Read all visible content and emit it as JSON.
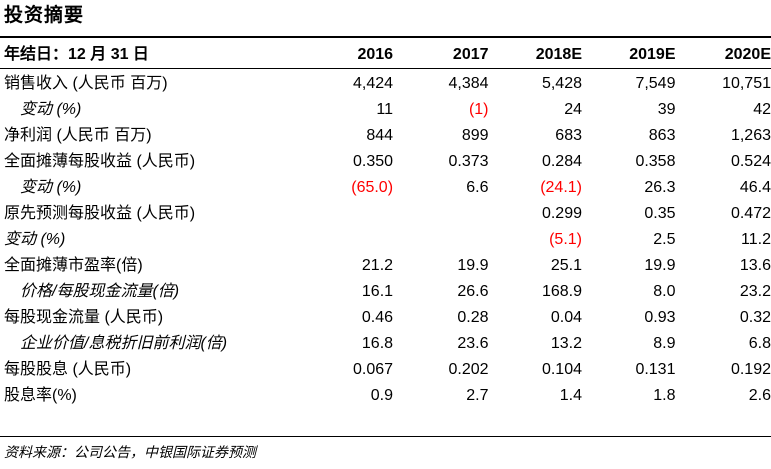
{
  "title": "投资摘要",
  "header": {
    "label": "年结日：12 月 31 日",
    "years": [
      "2016",
      "2017",
      "2018E",
      "2019E",
      "2020E"
    ]
  },
  "rows": [
    {
      "label": "销售收入 (人民币 百万)",
      "style": "normal",
      "values": [
        "4,424",
        "4,384",
        "5,428",
        "7,549",
        "10,751"
      ]
    },
    {
      "label": "变动 (%)",
      "style": "indent",
      "values": [
        "11",
        "(1)",
        "24",
        "39",
        "42"
      ]
    },
    {
      "label": "净利润 (人民币 百万)",
      "style": "normal",
      "values": [
        "844",
        "899",
        "683",
        "863",
        "1,263"
      ]
    },
    {
      "label": "全面摊薄每股收益 (人民币)",
      "style": "normal",
      "values": [
        "0.350",
        "0.373",
        "0.284",
        "0.358",
        "0.524"
      ]
    },
    {
      "label": "变动 (%)",
      "style": "indent",
      "values": [
        "(65.0)",
        "6.6",
        "(24.1)",
        "26.3",
        "46.4"
      ]
    },
    {
      "label": "原先预测每股收益 (人民币)",
      "style": "normal",
      "values": [
        "",
        "",
        "0.299",
        "0.35",
        "0.472"
      ]
    },
    {
      "label": "变动 (%)",
      "style": "italic",
      "values": [
        "",
        "",
        "(5.1)",
        "2.5",
        "11.2"
      ]
    },
    {
      "label": "全面摊薄市盈率(倍)",
      "style": "normal",
      "values": [
        "21.2",
        "19.9",
        "25.1",
        "19.9",
        "13.6"
      ]
    },
    {
      "label": "价格/每股现金流量(倍)",
      "style": "indent",
      "values": [
        "16.1",
        "26.6",
        "168.9",
        "8.0",
        "23.2"
      ]
    },
    {
      "label": "每股现金流量 (人民币)",
      "style": "normal",
      "values": [
        "0.46",
        "0.28",
        "0.04",
        "0.93",
        "0.32"
      ]
    },
    {
      "label": "企业价值/息税折旧前利润(倍)",
      "style": "indent",
      "values": [
        "16.8",
        "23.6",
        "13.2",
        "8.9",
        "6.8"
      ]
    },
    {
      "label": "每股股息 (人民币)",
      "style": "normal",
      "values": [
        "0.067",
        "0.202",
        "0.104",
        "0.131",
        "0.192"
      ]
    },
    {
      "label": "股息率(%)",
      "style": "normal",
      "values": [
        "0.9",
        "2.7",
        "1.4",
        "1.8",
        "2.6"
      ]
    }
  ],
  "source": "资料来源：公司公告，中银国际证券预测",
  "colors": {
    "negative": "#ff0000",
    "text": "#000000"
  }
}
